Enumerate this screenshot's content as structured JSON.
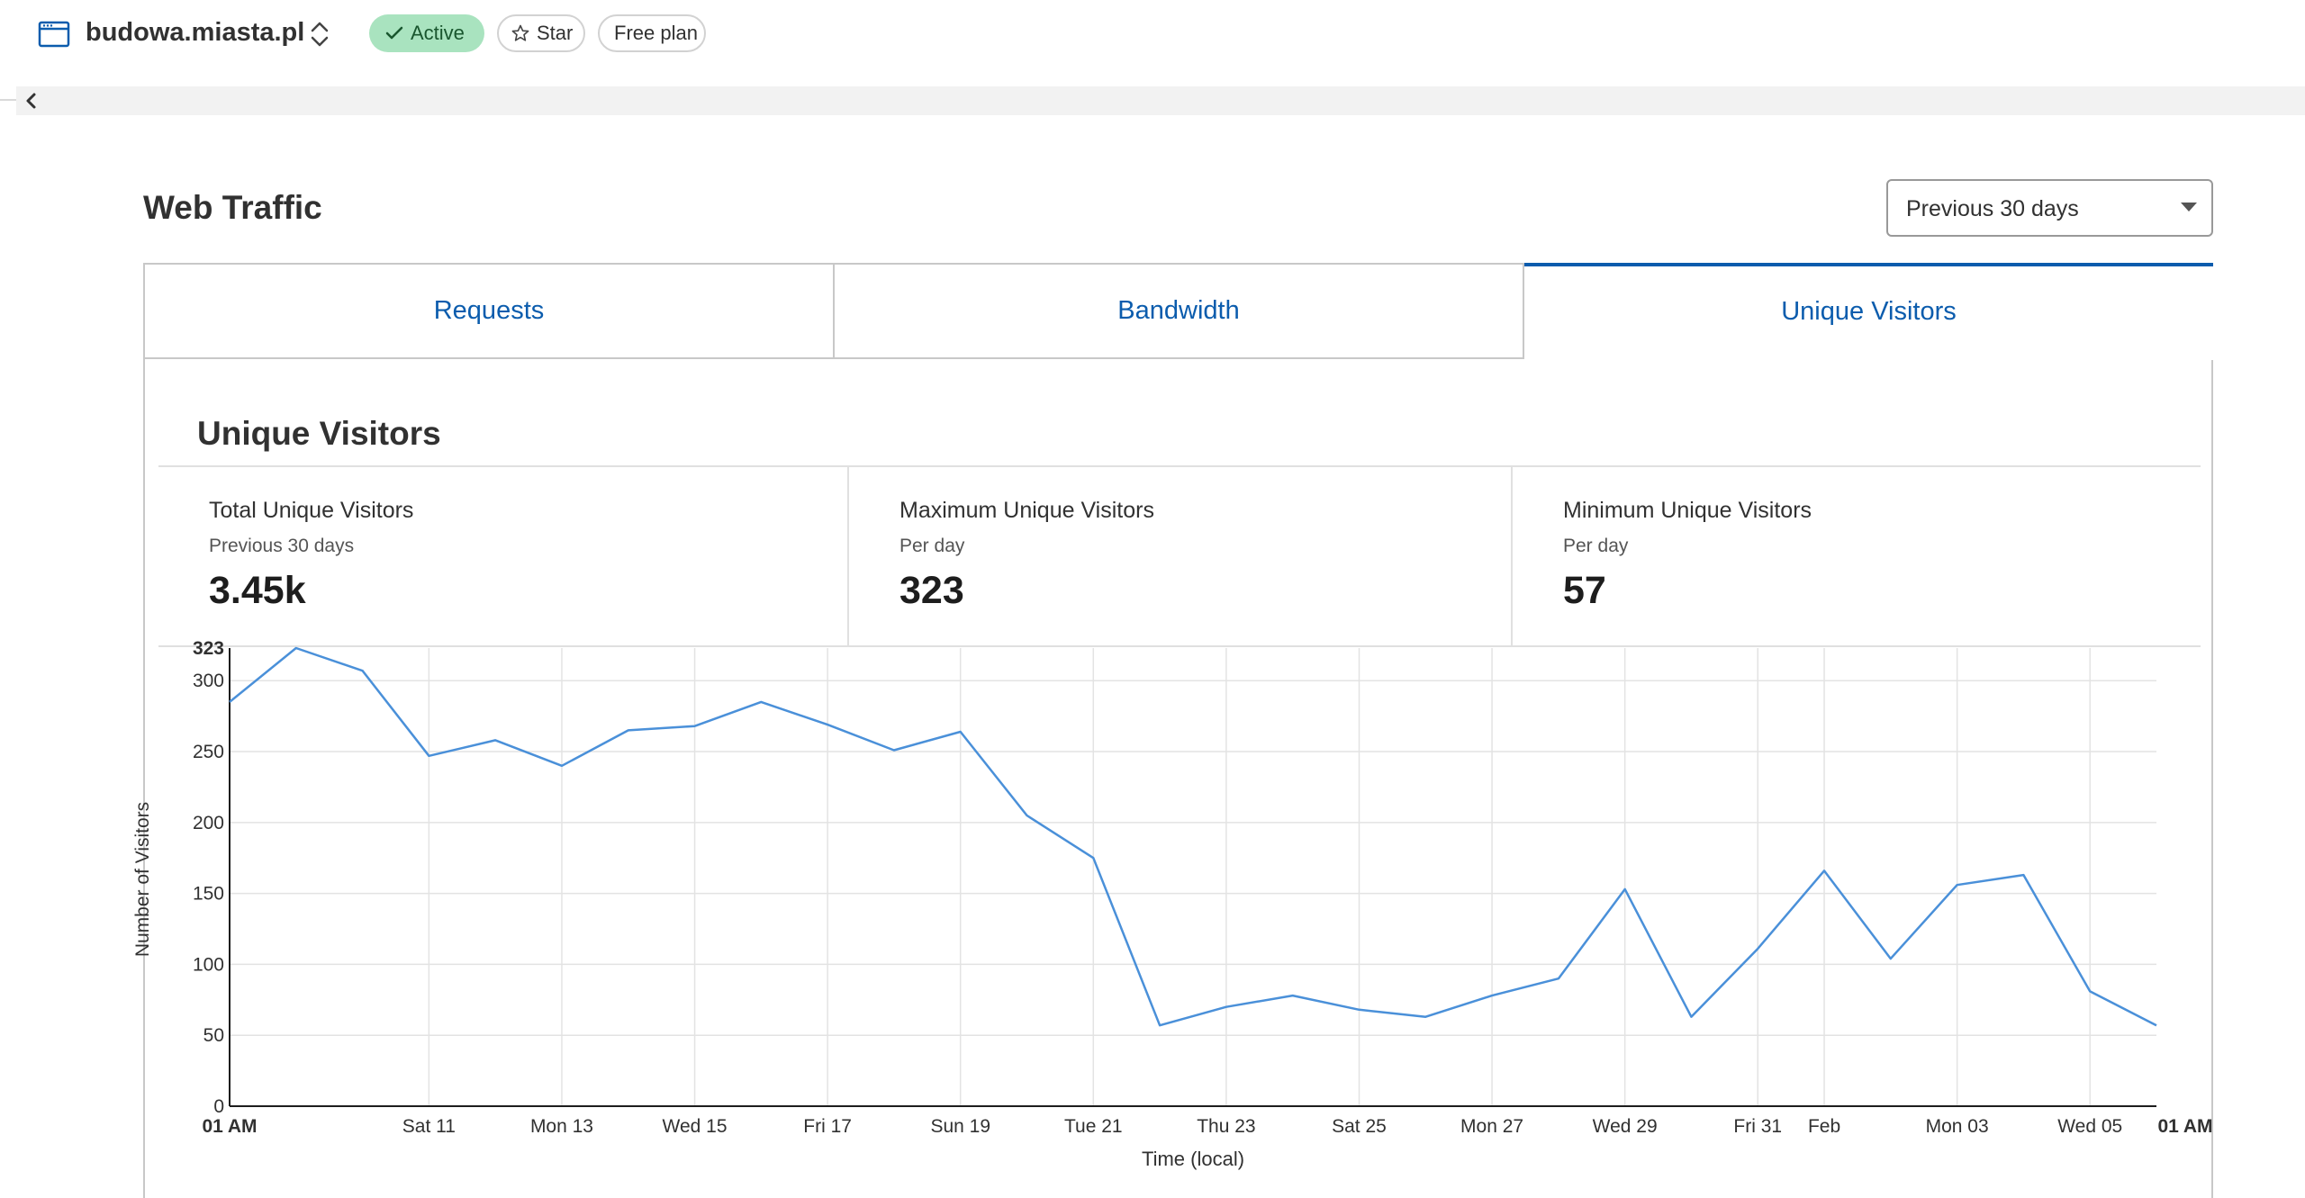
{
  "header": {
    "site_name": "budowa.miasta.pl",
    "status_label": "Active",
    "star_label": "Star",
    "plan_label": "Free plan"
  },
  "page": {
    "title": "Web Traffic",
    "range_select": {
      "value": "Previous 30 days"
    }
  },
  "tabs": [
    {
      "label": "Requests",
      "active": false
    },
    {
      "label": "Bandwidth",
      "active": false
    },
    {
      "label": "Unique Visitors",
      "active": true
    }
  ],
  "section": {
    "title": "Unique Visitors",
    "stats": [
      {
        "label": "Total Unique Visitors",
        "sub": "Previous 30 days",
        "value": "3.45k"
      },
      {
        "label": "Maximum Unique Visitors",
        "sub": "Per day",
        "value": "323"
      },
      {
        "label": "Minimum Unique Visitors",
        "sub": "Per day",
        "value": "57"
      }
    ]
  },
  "colors": {
    "accent": "#0b5cad",
    "line": "#4a90d9",
    "active_pill_bg": "#a9e3bf",
    "active_pill_text": "#19562e"
  },
  "chart_data": {
    "type": "line",
    "title": "",
    "xlabel": "Time (local)",
    "ylabel": "Number of Visitors",
    "ylim": [
      0,
      323
    ],
    "y_ticks": [
      0,
      50,
      100,
      150,
      200,
      250,
      300,
      323
    ],
    "x_tick_labels": [
      {
        "label": "01 AM",
        "i": 0,
        "bold": true
      },
      {
        "label": "Sat 11",
        "i": 3
      },
      {
        "label": "Mon 13",
        "i": 5
      },
      {
        "label": "Wed 15",
        "i": 7
      },
      {
        "label": "Fri 17",
        "i": 9
      },
      {
        "label": "Sun 19",
        "i": 11
      },
      {
        "label": "Tue 21",
        "i": 13
      },
      {
        "label": "Thu 23",
        "i": 15
      },
      {
        "label": "Sat 25",
        "i": 17
      },
      {
        "label": "Mon 27",
        "i": 19
      },
      {
        "label": "Wed 29",
        "i": 21
      },
      {
        "label": "Fri 31",
        "i": 23
      },
      {
        "label": "Feb",
        "i": 24
      },
      {
        "label": "Mon 03",
        "i": 26
      },
      {
        "label": "Wed 05",
        "i": 28
      },
      {
        "label": "01 AM",
        "i": 29,
        "bold": true
      }
    ],
    "grid": true,
    "series": [
      {
        "values": [
          285,
          323,
          307,
          247,
          258,
          240,
          265,
          268,
          285,
          269,
          251,
          264,
          205,
          175,
          57,
          70,
          78,
          68,
          63,
          78,
          90,
          153,
          63,
          111,
          166,
          104,
          156,
          163,
          81,
          57
        ]
      }
    ]
  }
}
